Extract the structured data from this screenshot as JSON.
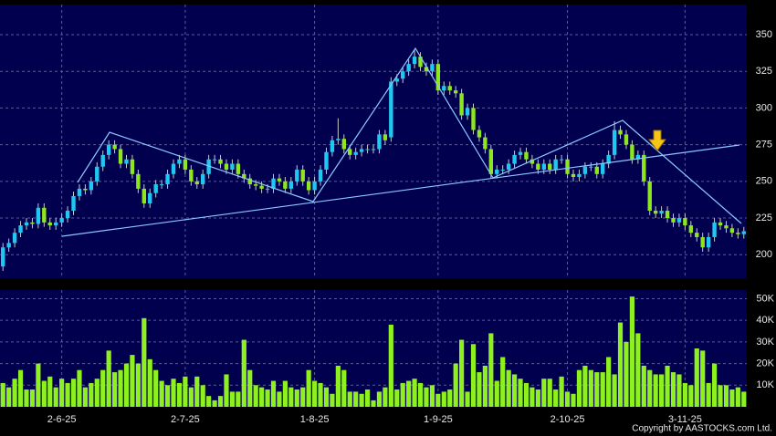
{
  "chart_data": {
    "type": "candlestick",
    "categories": [
      null,
      null,
      null,
      null,
      null,
      null,
      null,
      null,
      null,
      null,
      "2-6-25",
      null,
      null,
      null,
      null,
      null,
      null,
      null,
      null,
      null,
      null,
      null,
      null,
      null,
      null,
      null,
      null,
      null,
      null,
      null,
      null,
      "2-7-25",
      null,
      null,
      null,
      null,
      null,
      null,
      null,
      null,
      null,
      null,
      null,
      null,
      null,
      null,
      null,
      null,
      null,
      null,
      null,
      null,
      null,
      "1-8-25",
      null,
      null,
      null,
      null,
      null,
      null,
      null,
      null,
      null,
      null,
      null,
      null,
      null,
      null,
      null,
      null,
      null,
      null,
      null,
      null,
      "1-9-25",
      null,
      null,
      null,
      null,
      null,
      null,
      null,
      null,
      null,
      null,
      null,
      null,
      null,
      null,
      null,
      null,
      null,
      null,
      null,
      null,
      null,
      "2-10-25",
      null,
      null,
      null,
      null,
      null,
      null,
      null,
      null,
      null,
      null,
      null,
      null,
      null,
      null,
      null,
      null,
      null,
      null,
      null,
      "3-11-25",
      null,
      null,
      null,
      null,
      null,
      null,
      null,
      null,
      null,
      null
    ],
    "open": [
      192,
      205,
      208,
      215,
      220,
      222,
      221,
      232,
      222,
      220,
      222,
      225,
      230,
      240,
      245,
      244,
      250,
      260,
      268,
      275,
      272,
      262,
      265,
      255,
      245,
      235,
      242,
      248,
      248,
      255,
      262,
      265,
      258,
      250,
      248,
      255,
      265,
      265,
      262,
      258,
      262,
      255,
      252,
      248,
      247,
      245,
      245,
      252,
      250,
      245,
      250,
      258,
      250,
      244,
      250,
      258,
      270,
      278,
      279,
      272,
      268,
      270,
      272,
      272,
      272,
      282,
      280,
      318,
      320,
      325,
      330,
      335,
      328,
      325,
      330,
      312,
      315,
      312,
      310,
      295,
      300,
      285,
      280,
      272,
      255,
      258,
      258,
      262,
      268,
      270,
      265,
      262,
      258,
      262,
      258,
      265,
      265,
      255,
      253,
      255,
      260,
      260,
      255,
      262,
      268,
      285,
      282,
      275,
      265,
      268,
      250,
      230,
      228,
      230,
      225,
      222,
      225,
      220,
      215,
      212,
      205,
      212,
      222,
      220,
      218,
      215,
      214
    ],
    "high": [
      208,
      211,
      218,
      223,
      225,
      225,
      235,
      235,
      225,
      225,
      228,
      233,
      243,
      248,
      248,
      253,
      263,
      271,
      278,
      278,
      275,
      268,
      268,
      258,
      248,
      245,
      251,
      251,
      258,
      265,
      268,
      268,
      261,
      253,
      258,
      268,
      268,
      268,
      265,
      265,
      265,
      258,
      255,
      251,
      250,
      248,
      255,
      255,
      253,
      253,
      261,
      261,
      253,
      253,
      261,
      273,
      281,
      293,
      282,
      275,
      273,
      275,
      275,
      275,
      285,
      285,
      321,
      323,
      328,
      333,
      340,
      338,
      331,
      333,
      333,
      318,
      318,
      315,
      313,
      303,
      303,
      288,
      283,
      275,
      261,
      261,
      265,
      271,
      273,
      273,
      268,
      265,
      265,
      265,
      268,
      268,
      268,
      258,
      258,
      263,
      263,
      263,
      265,
      271,
      291,
      288,
      285,
      278,
      271,
      271,
      253,
      233,
      233,
      233,
      228,
      228,
      228,
      223,
      218,
      215,
      215,
      225,
      225,
      223,
      221,
      218,
      219
    ],
    "low": [
      189,
      202,
      205,
      212,
      217,
      218,
      218,
      219,
      217,
      217,
      219,
      222,
      227,
      237,
      241,
      241,
      247,
      257,
      265,
      269,
      259,
      259,
      252,
      242,
      232,
      232,
      239,
      245,
      245,
      252,
      259,
      255,
      247,
      245,
      245,
      252,
      262,
      259,
      255,
      255,
      252,
      249,
      245,
      244,
      242,
      242,
      242,
      247,
      242,
      242,
      247,
      247,
      241,
      241,
      247,
      255,
      267,
      275,
      269,
      265,
      265,
      267,
      269,
      269,
      269,
      275,
      277,
      315,
      317,
      322,
      327,
      325,
      322,
      322,
      309,
      309,
      309,
      307,
      292,
      292,
      282,
      277,
      269,
      252,
      252,
      255,
      255,
      259,
      265,
      262,
      259,
      255,
      255,
      255,
      255,
      262,
      252,
      250,
      250,
      252,
      257,
      252,
      252,
      259,
      265,
      279,
      272,
      262,
      262,
      247,
      227,
      225,
      225,
      222,
      219,
      219,
      217,
      212,
      209,
      202,
      202,
      209,
      217,
      215,
      212,
      211,
      211
    ],
    "close": [
      205,
      208,
      215,
      220,
      222,
      221,
      232,
      222,
      220,
      222,
      225,
      230,
      240,
      245,
      244,
      250,
      260,
      268,
      275,
      272,
      262,
      265,
      255,
      245,
      235,
      242,
      248,
      248,
      255,
      262,
      265,
      258,
      250,
      248,
      255,
      265,
      265,
      262,
      258,
      262,
      255,
      252,
      248,
      247,
      245,
      245,
      252,
      250,
      245,
      250,
      258,
      250,
      244,
      250,
      258,
      270,
      278,
      279,
      272,
      268,
      270,
      272,
      272,
      272,
      282,
      278,
      318,
      320,
      325,
      330,
      335,
      328,
      325,
      330,
      312,
      315,
      312,
      310,
      295,
      300,
      285,
      280,
      272,
      255,
      258,
      258,
      262,
      268,
      270,
      265,
      262,
      258,
      262,
      258,
      265,
      265,
      255,
      253,
      255,
      260,
      260,
      255,
      262,
      268,
      285,
      282,
      275,
      265,
      268,
      250,
      230,
      228,
      230,
      225,
      222,
      225,
      220,
      215,
      212,
      205,
      212,
      222,
      220,
      218,
      215,
      214,
      216
    ],
    "up_color": "#1ec8f0",
    "down_color": "#8ee61e",
    "ylim": [
      184,
      370.5
    ],
    "yticks": [
      200,
      225,
      250,
      275,
      300,
      325,
      350
    ],
    "grid": true,
    "volume": {
      "color": "#8ef01e",
      "values": [
        11000,
        9000,
        13000,
        17000,
        8000,
        8000,
        20000,
        12000,
        14000,
        9000,
        13000,
        11000,
        13000,
        17000,
        9000,
        11000,
        13000,
        17000,
        26000,
        16000,
        17000,
        20000,
        24000,
        20000,
        41000,
        22000,
        17000,
        12000,
        10000,
        13000,
        11000,
        14000,
        9000,
        14000,
        10000,
        5000,
        3000,
        5000,
        15000,
        7000,
        7000,
        31000,
        17000,
        10000,
        9000,
        8000,
        12000,
        7000,
        12000,
        9000,
        8000,
        9000,
        17000,
        12000,
        11000,
        9000,
        6000,
        19000,
        17000,
        7000,
        7000,
        6000,
        8000,
        3000,
        7000,
        9000,
        38000,
        8000,
        11000,
        12000,
        13000,
        11000,
        9000,
        10000,
        6000,
        7000,
        8000,
        20000,
        31000,
        7000,
        29000,
        16000,
        19000,
        34000,
        12000,
        23000,
        17000,
        15000,
        13000,
        11000,
        9000,
        8000,
        13000,
        13000,
        8000,
        14000,
        7000,
        6000,
        17000,
        19000,
        17000,
        16000,
        16000,
        23000,
        15000,
        39000,
        30000,
        51000,
        34000,
        19000,
        17000,
        15000,
        15000,
        19000,
        16000,
        15000,
        11000,
        10000,
        27000,
        26000,
        11000,
        20000,
        10000,
        10000,
        8000,
        9000,
        7000
      ],
      "ylim": [
        0,
        54000
      ],
      "yticks": [
        {
          "value": 10000,
          "label": "10K"
        },
        {
          "value": 20000,
          "label": "20K"
        },
        {
          "value": 30000,
          "label": "30K"
        },
        {
          "value": 40000,
          "label": "40K"
        },
        {
          "value": 50000,
          "label": "50K"
        }
      ]
    },
    "source": "Copyright by AASTOCKS.com Ltd."
  }
}
